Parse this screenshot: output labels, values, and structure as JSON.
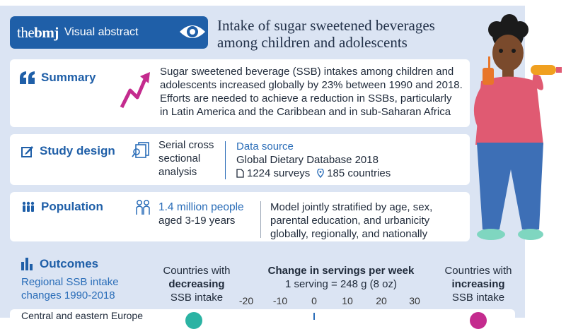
{
  "header": {
    "logo_prefix": "the",
    "logo_bold": "bmj",
    "badge_label": "Visual abstract",
    "title_line1": "Intake of sugar sweetened beverages",
    "title_line2": "among children and adolescents"
  },
  "summary": {
    "label": "Summary",
    "text": [
      "Sugar sweetened beverage (SSB) intakes among children and",
      "adolescents increased globally by 23% between 1990 and 2018.",
      "Efforts are needed to achieve a reduction in SSBs, particularly",
      "in Latin America and the Caribbean and in sub-Saharan Africa"
    ]
  },
  "study_design": {
    "label": "Study design",
    "design_lines": [
      "Serial cross",
      "sectional",
      "analysis"
    ],
    "data_source_label": "Data source",
    "database": "Global Dietary Database 2018",
    "surveys": "1224 surveys",
    "countries": "185 countries"
  },
  "population": {
    "label": "Population",
    "count": "1.4 million people",
    "ages": "aged 3-19 years",
    "model_lines": [
      "Model jointly stratified by age, sex,",
      "parental education, and urbanicity",
      "globally, regionally, and nationally"
    ]
  },
  "outcomes": {
    "label": "Outcomes",
    "sub_line1": "Regional SSB intake",
    "sub_line2": "changes 1990-2018",
    "decreasing_l1": "Countries with",
    "decreasing_l2": "decreasing",
    "decreasing_l3": "SSB intake",
    "change_title": "Change in servings per week",
    "serving_note": "1 serving = 248 g (8 oz)",
    "increasing_l1": "Countries with",
    "increasing_l2": "increasing",
    "increasing_l3": "SSB intake",
    "ticks": [
      "-20",
      "-10",
      "0",
      "10",
      "20",
      "30"
    ],
    "first_region": "Central and eastern Europe"
  },
  "colors": {
    "brand_blue": "#1f5fa8",
    "panel": "#dbe4f3",
    "teal": "#2bb3a3",
    "magenta": "#c42b8e"
  }
}
